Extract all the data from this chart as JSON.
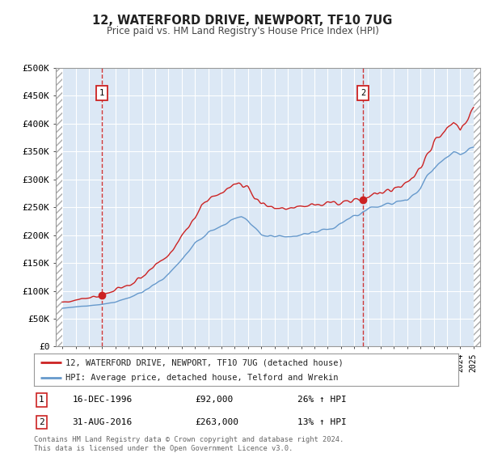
{
  "title": "12, WATERFORD DRIVE, NEWPORT, TF10 7UG",
  "subtitle": "Price paid vs. HM Land Registry's House Price Index (HPI)",
  "ylim": [
    0,
    500000
  ],
  "yticks": [
    0,
    50000,
    100000,
    150000,
    200000,
    250000,
    300000,
    350000,
    400000,
    450000,
    500000
  ],
  "ytick_labels": [
    "£0",
    "£50K",
    "£100K",
    "£150K",
    "£200K",
    "£250K",
    "£300K",
    "£350K",
    "£400K",
    "£450K",
    "£500K"
  ],
  "bg_color": "#dce8f5",
  "grid_color": "#ffffff",
  "red_line_color": "#cc2222",
  "blue_line_color": "#6699cc",
  "sale1_year": 1996.96,
  "sale1_price": 92000,
  "sale2_year": 2016.66,
  "sale2_price": 263000,
  "legend_label1": "12, WATERFORD DRIVE, NEWPORT, TF10 7UG (detached house)",
  "legend_label2": "HPI: Average price, detached house, Telford and Wrekin",
  "note1_date": "16-DEC-1996",
  "note1_price": "£92,000",
  "note1_hpi": "26% ↑ HPI",
  "note2_date": "31-AUG-2016",
  "note2_price": "£263,000",
  "note2_hpi": "13% ↑ HPI",
  "footer": "Contains HM Land Registry data © Crown copyright and database right 2024.\nThis data is licensed under the Open Government Licence v3.0.",
  "xlim_start": 1993.5,
  "xlim_end": 2025.5,
  "data_start": 1994.0,
  "data_end": 2025.0,
  "hatch_left_end": 1994.0,
  "hatch_right_start": 2025.0
}
